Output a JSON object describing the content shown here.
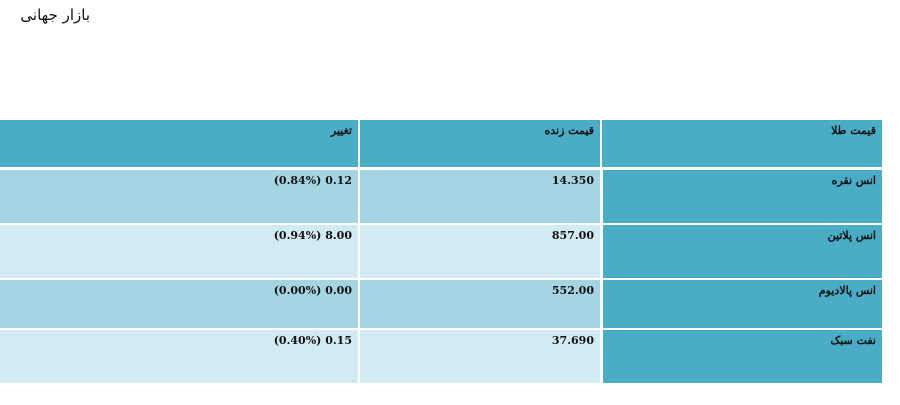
{
  "title": "بازار جهانی",
  "table": {
    "headers": [
      "قیمت طلا",
      "قیمت زنده",
      "تغییر"
    ],
    "rows": [
      {
        "name": "انس نقره",
        "price": "14.350",
        "change": "(0.84%) 0.12"
      },
      {
        "name": "انس پلاتین",
        "price": "857.00",
        "change": "(0.94%) 8.00"
      },
      {
        "name": "انس پالادیوم",
        "price": "552.00",
        "change": "(0.00%) 0.00"
      },
      {
        "name": "نفت سبک",
        "price": "37.690",
        "change": "(0.40%) 0.15"
      }
    ]
  },
  "colors": {
    "header_bg": "#4bacc6",
    "row_dark": "#a5d5e2",
    "row_light": "#d2eaf1"
  }
}
